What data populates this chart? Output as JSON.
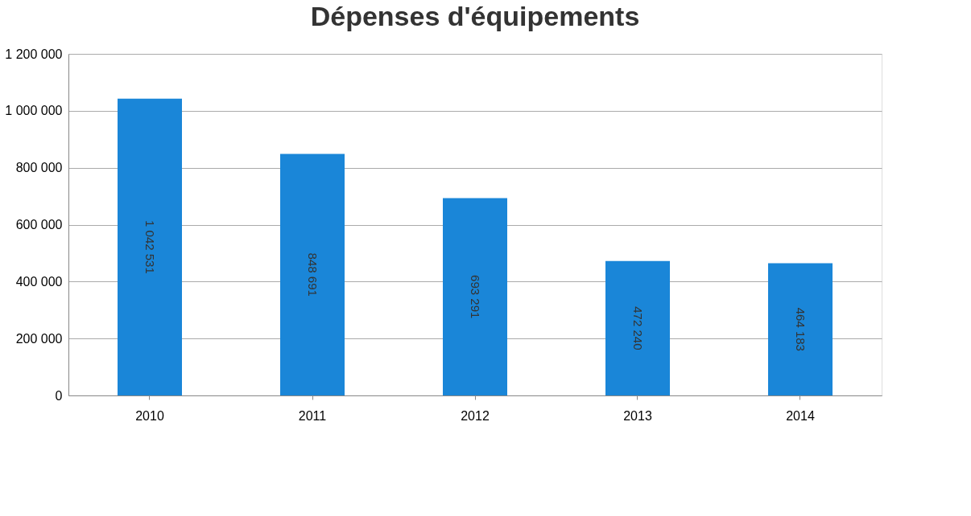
{
  "chart_data": {
    "type": "bar",
    "title": "Dépenses d'équipements",
    "categories": [
      "2010",
      "2011",
      "2012",
      "2013",
      "2014"
    ],
    "values": [
      1042531,
      848691,
      693291,
      472240,
      464183
    ],
    "value_labels": [
      "1 042 531",
      "848 691",
      "693 291",
      "472 240",
      "464 183"
    ],
    "color": "#1a86d8",
    "ylim": [
      0,
      1200000
    ],
    "yticks": [
      0,
      {
        "value": 200000,
        "label": "200 000"
      },
      {
        "value": 400000,
        "label": "400 000"
      },
      {
        "value": 600000,
        "label": "600 000"
      },
      {
        "value": 800000,
        "label": "800 000"
      },
      {
        "value": 1000000,
        "label": "1 000 000"
      },
      {
        "value": 1200000,
        "label": "1 200 000"
      }
    ],
    "grid": "y"
  }
}
